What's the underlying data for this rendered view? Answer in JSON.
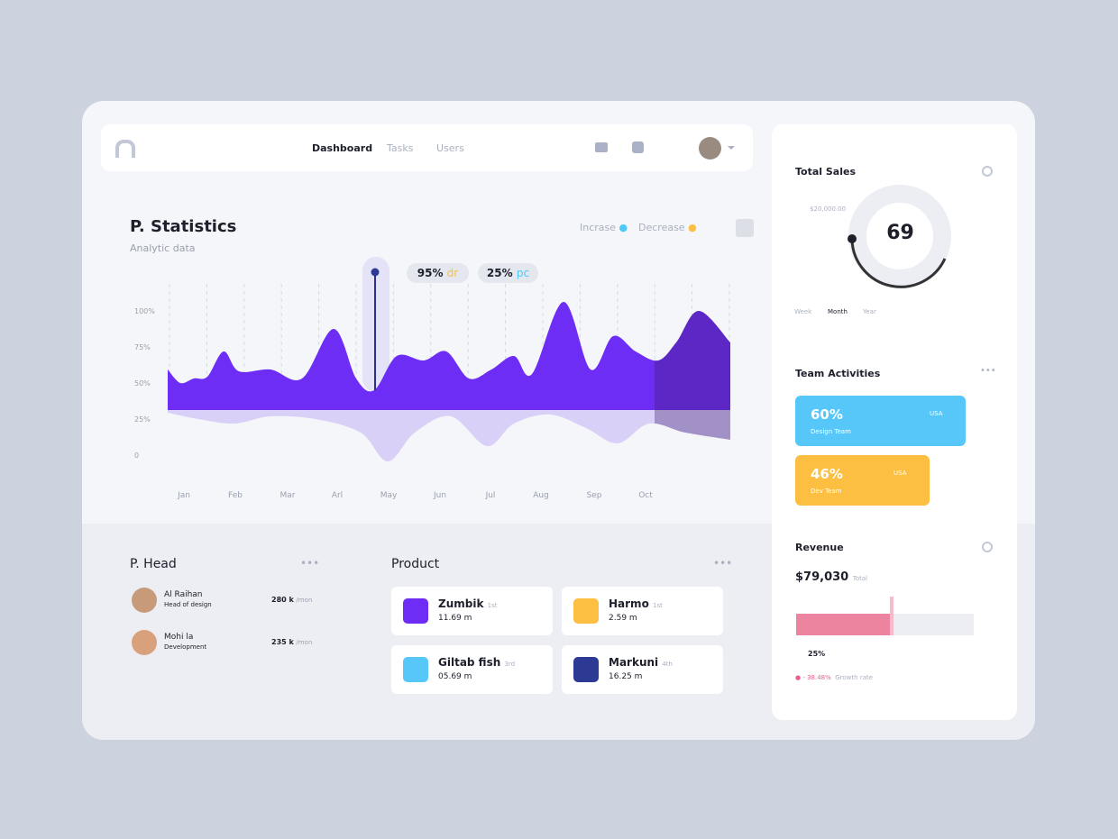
{
  "nav": {
    "items": [
      "Dashboard",
      "Tasks",
      "Users"
    ]
  },
  "stats": {
    "title": "P. Statistics",
    "subtitle": "Analytic data",
    "legend": [
      "Incrase",
      "Decrease"
    ],
    "badges": [
      {
        "value": "95%",
        "tag": "dr"
      },
      {
        "value": "25%",
        "tag": "pc"
      }
    ],
    "yaxis": [
      "100%",
      "75%",
      "50%",
      "25%",
      "0"
    ],
    "months": [
      "Jan",
      "Feb",
      "Mar",
      "Arl",
      "May",
      "Jun",
      "Jul",
      "Aug",
      "Sep",
      "Oct"
    ]
  },
  "head": {
    "title": "P. Head",
    "people": [
      {
        "name": "Al Raihan",
        "role": "Head of design",
        "value": "280 k",
        "unit": "/mon"
      },
      {
        "name": "Mohi la",
        "role": "Development",
        "value": "235 k",
        "unit": "/mon"
      }
    ]
  },
  "product": {
    "title": "Product",
    "items": [
      {
        "name": "Zumbik",
        "rank": "1st",
        "size": "11.69 m"
      },
      {
        "name": "Harmo",
        "rank": "1st",
        "size": "2.59 m"
      },
      {
        "name": "Giltab fish",
        "rank": "3rd",
        "size": "05.69 m"
      },
      {
        "name": "Markuni",
        "rank": "4th",
        "size": "16.25 m"
      }
    ]
  },
  "sales": {
    "title": "Total Sales",
    "amount": "$20,000.00",
    "value": "69",
    "tabs": [
      "Week",
      "Month",
      "Year"
    ]
  },
  "team": {
    "title": "Team Activities",
    "items": [
      {
        "percent": "60%",
        "name": "Design Team",
        "region": "USA"
      },
      {
        "percent": "46%",
        "name": "Dev Team",
        "region": "USA"
      }
    ]
  },
  "revenue": {
    "title": "Revenue",
    "amount": "$79,030",
    "label": "Total",
    "percent": "25%",
    "growth": "- 38.48%",
    "growth_label": "Growth rate"
  }
}
